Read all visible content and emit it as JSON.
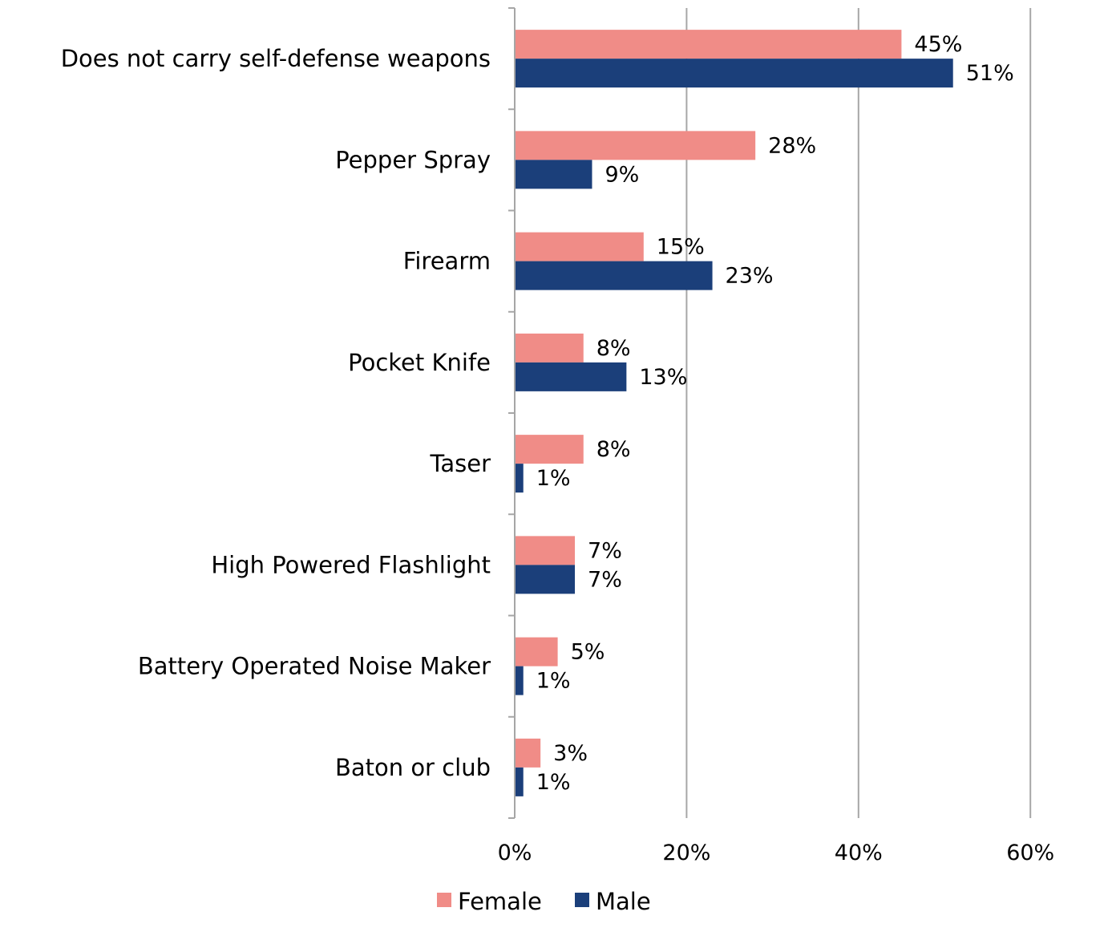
{
  "chart_data": {
    "type": "bar",
    "orientation": "horizontal",
    "categories": [
      "Does not carry self-defense weapons",
      "Pepper Spray",
      "Firearm",
      "Pocket Knife",
      "Taser",
      "High Powered Flashlight",
      "Battery Operated Noise Maker",
      "Baton or club"
    ],
    "series": [
      {
        "name": "Female",
        "color": "#F08C87",
        "values": [
          45,
          28,
          15,
          8,
          8,
          7,
          5,
          3
        ],
        "labels": [
          "45%",
          "28%",
          "15%",
          "8%",
          "8%",
          "7%",
          "5%",
          "3%"
        ]
      },
      {
        "name": "Male",
        "color": "#1B3F7A",
        "values": [
          51,
          9,
          23,
          13,
          1,
          7,
          1,
          1
        ],
        "labels": [
          "51%",
          "9%",
          "23%",
          "13%",
          "1%",
          "7%",
          "1%",
          "1%"
        ]
      }
    ],
    "xlim": [
      0,
      60
    ],
    "xticks": [
      0,
      20,
      40,
      60
    ],
    "xtick_labels": [
      "0%",
      "20%",
      "40%",
      "60%"
    ],
    "title": "",
    "xlabel": "",
    "ylabel": "",
    "grid": "vertical",
    "legend_position": "bottom"
  }
}
